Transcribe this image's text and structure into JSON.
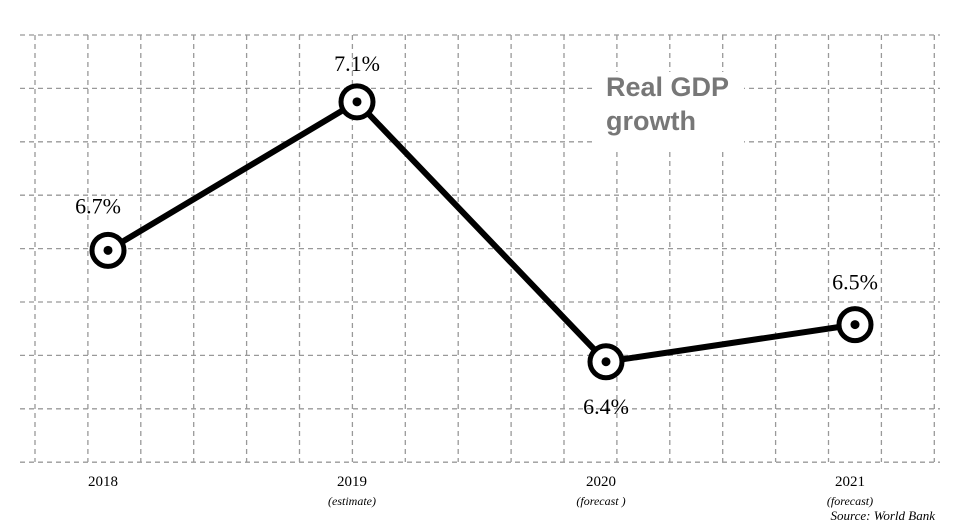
{
  "chart_data": {
    "type": "line",
    "title": "Real GDP growth",
    "categories": [
      "2018",
      "2019",
      "2020",
      "2021"
    ],
    "category_notes": [
      null,
      "(estimate)",
      "(forecast )",
      "(forecast)"
    ],
    "values": [
      6.7,
      7.1,
      6.4,
      6.5
    ],
    "value_labels": [
      "6.7%",
      "7.1%",
      "6.4%",
      "6.5%"
    ],
    "color": "#000000",
    "ylim": [
      6.13,
      7.28
    ],
    "source": "Source: World Bank"
  }
}
